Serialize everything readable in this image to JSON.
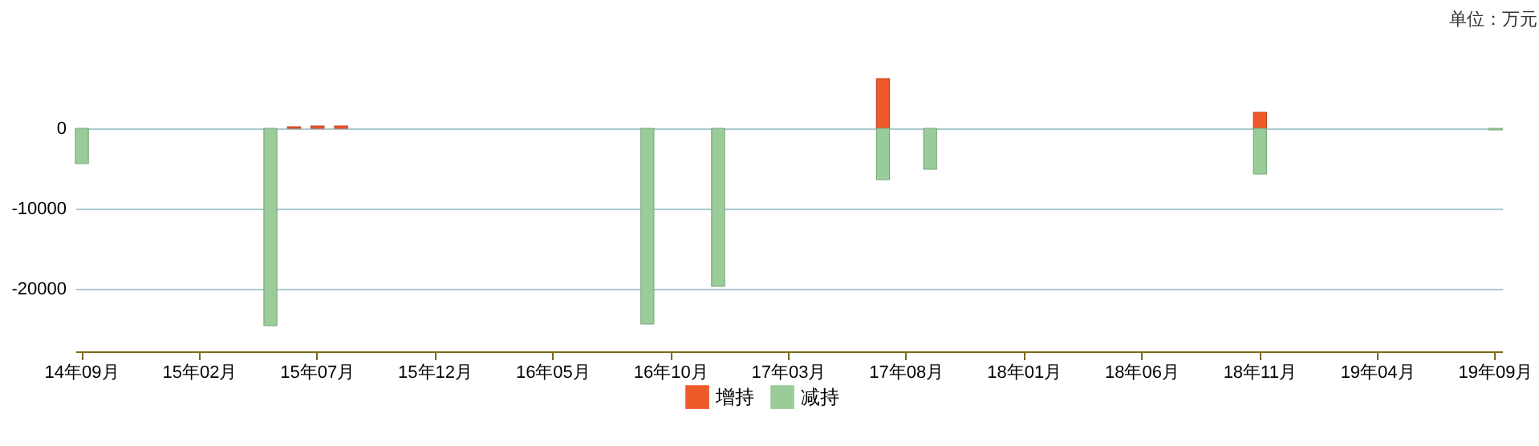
{
  "chart_data": {
    "type": "bar",
    "stacked": true,
    "categories": [
      "14年09月",
      null,
      null,
      null,
      null,
      "15年02月",
      null,
      null,
      null,
      null,
      "15年07月",
      null,
      null,
      null,
      null,
      "15年12月",
      null,
      null,
      null,
      null,
      "16年05月",
      null,
      null,
      null,
      null,
      "16年10月",
      null,
      null,
      null,
      null,
      "17年03月",
      null,
      null,
      null,
      null,
      "17年08月",
      null,
      null,
      null,
      null,
      "18年01月",
      null,
      null,
      null,
      null,
      "18年06月",
      null,
      null,
      null,
      null,
      "18年11月",
      null,
      null,
      null,
      null,
      "19年04月",
      null,
      null,
      null,
      null,
      "19年09月"
    ],
    "series": [
      {
        "name": "增持",
        "color": "#f05a2a",
        "values": [
          null,
          null,
          null,
          null,
          null,
          null,
          null,
          null,
          null,
          200,
          300,
          300,
          null,
          null,
          null,
          null,
          null,
          null,
          null,
          null,
          null,
          null,
          null,
          null,
          null,
          null,
          null,
          null,
          null,
          null,
          null,
          null,
          null,
          null,
          6200,
          null,
          null,
          null,
          null,
          null,
          null,
          null,
          null,
          null,
          null,
          null,
          null,
          null,
          null,
          null,
          2000,
          null,
          null,
          null,
          null,
          null,
          null,
          null,
          null,
          null,
          null
        ]
      },
      {
        "name": "减持",
        "color": "#99cc99",
        "values": [
          -4400,
          null,
          null,
          null,
          null,
          null,
          null,
          null,
          -24600,
          null,
          null,
          null,
          null,
          null,
          null,
          null,
          null,
          null,
          null,
          null,
          null,
          null,
          null,
          null,
          -24400,
          null,
          null,
          -19700,
          null,
          null,
          null,
          null,
          null,
          null,
          -6400,
          null,
          -5100,
          null,
          null,
          null,
          null,
          null,
          null,
          null,
          null,
          null,
          null,
          null,
          null,
          null,
          -5700,
          null,
          null,
          null,
          null,
          null,
          null,
          null,
          null,
          null,
          -200
        ]
      }
    ],
    "ylim": [
      -27800,
      6200
    ],
    "yticks": [
      -20000,
      -10000,
      0
    ],
    "grid": "y",
    "legend": "bottom",
    "annotations": [
      "单位：万元"
    ]
  }
}
